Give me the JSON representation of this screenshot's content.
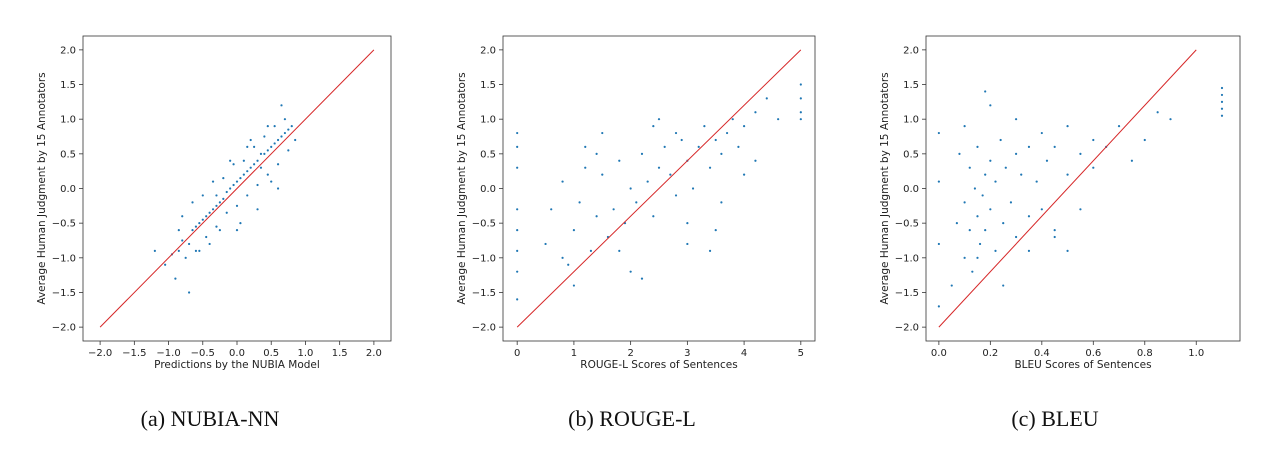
{
  "chart_data": [
    {
      "type": "scatter",
      "caption": "(a) NUBIA-NN",
      "xlabel": "Predictions by the NUBIA Model",
      "ylabel": "Average Human Judgment by 15 Annotators",
      "xlim": [
        -2.25,
        2.25
      ],
      "ylim": [
        -2.2,
        2.2
      ],
      "x_ticks": [
        -2.0,
        -1.5,
        -1.0,
        -0.5,
        0.0,
        0.5,
        1.0,
        1.5,
        2.0
      ],
      "x_tick_labels": [
        "−2.0",
        "−1.5",
        "−1.0",
        "−0.5",
        "0.0",
        "0.5",
        "1.0",
        "1.5",
        "2.0"
      ],
      "y_ticks": [
        -2.0,
        -1.5,
        -1.0,
        -0.5,
        0.0,
        0.5,
        1.0,
        1.5,
        2.0
      ],
      "y_tick_labels": [
        "−2.0",
        "−1.5",
        "−1.0",
        "−0.5",
        "0.0",
        "0.5",
        "1.0",
        "1.5",
        "2.0"
      ],
      "reference_line": {
        "x": [
          -2.0,
          2.0
        ],
        "y": [
          -2.0,
          2.0
        ],
        "color": "#d62728"
      },
      "point_color": "#1f77b4",
      "grid": false,
      "series": [
        {
          "x": [
            -1.05,
            -0.95,
            -0.85,
            -0.8,
            -0.7,
            -0.65,
            -0.6,
            -0.55,
            -0.5,
            -0.45,
            -0.4,
            -0.35,
            -0.3,
            -0.25,
            -0.2,
            -0.15,
            -0.1,
            -0.05,
            0.0,
            0.05,
            0.1,
            0.15,
            0.2,
            0.25,
            0.3,
            0.35,
            0.4,
            0.45,
            0.5,
            0.55,
            0.6,
            0.65,
            0.7,
            0.75,
            0.8,
            -0.9,
            -0.75,
            -0.6,
            -0.45,
            -0.3,
            -0.15,
            0.0,
            0.15,
            0.3,
            0.45,
            0.6,
            0.75,
            -0.5,
            -0.2,
            0.1,
            0.4,
            0.7,
            -0.8,
            -0.4,
            0.0,
            0.3,
            0.6,
            -0.65,
            -0.35,
            -0.05,
            0.25,
            0.55,
            -1.2,
            -0.25,
            0.35,
            0.85,
            -0.7,
            0.05,
            0.5,
            -0.55,
            -0.1,
            0.2,
            0.65,
            -0.85,
            -0.3,
            0.15,
            0.45
          ],
          "y": [
            -1.1,
            -0.95,
            -0.9,
            -0.75,
            -0.8,
            -0.6,
            -0.55,
            -0.5,
            -0.45,
            -0.4,
            -0.35,
            -0.3,
            -0.25,
            -0.2,
            -0.15,
            -0.05,
            0.0,
            0.05,
            0.1,
            0.15,
            0.2,
            0.25,
            0.3,
            0.35,
            0.4,
            0.5,
            0.5,
            0.55,
            0.6,
            0.65,
            0.7,
            0.75,
            0.8,
            0.85,
            0.9,
            -1.3,
            -1.0,
            -0.9,
            -0.7,
            -0.55,
            -0.35,
            -0.25,
            -0.1,
            0.05,
            0.2,
            0.35,
            0.55,
            -0.1,
            0.15,
            0.4,
            0.75,
            1.0,
            -0.4,
            -0.8,
            -0.6,
            -0.3,
            0.0,
            -0.2,
            0.1,
            0.35,
            0.6,
            0.9,
            -0.9,
            -0.6,
            0.3,
            0.7,
            -1.5,
            -0.5,
            0.1,
            -0.9,
            0.4,
            0.7,
            1.2,
            -0.6,
            -0.1,
            0.6,
            0.9
          ]
        }
      ]
    },
    {
      "type": "scatter",
      "caption": "(b) ROUGE-L",
      "xlabel": "ROUGE-L Scores of Sentences",
      "ylabel": "Average Human Judgment by 15 Annotators",
      "xlim": [
        -0.25,
        5.25
      ],
      "ylim": [
        -2.2,
        2.2
      ],
      "x_ticks": [
        0,
        1,
        2,
        3,
        4,
        5
      ],
      "x_tick_labels": [
        "0",
        "1",
        "2",
        "3",
        "4",
        "5"
      ],
      "y_ticks": [
        -2.0,
        -1.5,
        -1.0,
        -0.5,
        0.0,
        0.5,
        1.0,
        1.5,
        2.0
      ],
      "y_tick_labels": [
        "−2.0",
        "−1.5",
        "−1.0",
        "−0.5",
        "0.0",
        "0.5",
        "1.0",
        "1.5",
        "2.0"
      ],
      "reference_line": {
        "x": [
          0,
          5
        ],
        "y": [
          -2.0,
          2.0
        ],
        "color": "#d62728"
      },
      "point_color": "#1f77b4",
      "grid": false,
      "series": [
        {
          "x": [
            0,
            0,
            0,
            0,
            0,
            0,
            0,
            0,
            0.5,
            0.6,
            0.8,
            0.9,
            1.0,
            1.1,
            1.2,
            1.3,
            1.4,
            1.5,
            1.6,
            1.7,
            1.8,
            1.9,
            2.0,
            2.1,
            2.2,
            2.3,
            2.4,
            2.5,
            2.6,
            2.7,
            2.8,
            2.9,
            3.0,
            3.1,
            3.2,
            3.3,
            3.4,
            3.5,
            3.6,
            3.7,
            3.8,
            3.9,
            4.0,
            4.2,
            4.4,
            4.6,
            5,
            5,
            5,
            5,
            1.0,
            1.5,
            2.0,
            2.5,
            3.0,
            3.5,
            4.0,
            1.2,
            1.8,
            2.4,
            3.0,
            3.6,
            4.2,
            0.8,
            1.4,
            2.2,
            2.8,
            3.4
          ],
          "y": [
            -1.6,
            -1.2,
            -0.9,
            -0.6,
            -0.3,
            0.3,
            0.6,
            0.8,
            -0.8,
            -0.3,
            0.1,
            -1.1,
            -0.6,
            -0.2,
            0.3,
            -0.9,
            -0.4,
            0.2,
            -0.7,
            -0.3,
            0.4,
            -0.5,
            0.0,
            -0.2,
            0.5,
            0.1,
            -0.4,
            0.3,
            0.6,
            0.2,
            -0.1,
            0.7,
            0.4,
            0.0,
            0.6,
            0.9,
            0.3,
            0.7,
            0.5,
            0.8,
            1.0,
            0.6,
            0.9,
            1.1,
            1.3,
            1.0,
            1.5,
            1.3,
            1.1,
            1.0,
            -1.4,
            0.8,
            -1.2,
            1.0,
            -0.8,
            -0.6,
            0.2,
            0.6,
            -0.9,
            0.9,
            -0.5,
            -0.2,
            0.4,
            -1.0,
            0.5,
            -1.3,
            0.8,
            -0.9
          ]
        }
      ]
    },
    {
      "type": "scatter",
      "caption": "(c) BLEU",
      "xlabel": "BLEU Scores of Sentences",
      "ylabel": "Average Human Judgment by 15 Annotators",
      "xlim": [
        -0.05,
        1.17
      ],
      "ylim": [
        -2.2,
        2.2
      ],
      "x_ticks": [
        0.0,
        0.2,
        0.4,
        0.6,
        0.8,
        1.0
      ],
      "x_tick_labels": [
        "0.0",
        "0.2",
        "0.4",
        "0.6",
        "0.8",
        "1.0"
      ],
      "y_ticks": [
        -2.0,
        -1.5,
        -1.0,
        -0.5,
        0.0,
        0.5,
        1.0,
        1.5,
        2.0
      ],
      "y_tick_labels": [
        "−2.0",
        "−1.5",
        "−1.0",
        "−0.5",
        "0.0",
        "0.5",
        "1.0",
        "1.5",
        "2.0"
      ],
      "reference_line": {
        "x": [
          0.0,
          1.0
        ],
        "y": [
          -2.0,
          2.0
        ],
        "color": "#d62728"
      },
      "point_color": "#1f77b4",
      "grid": false,
      "series": [
        {
          "x": [
            0.0,
            0.0,
            0.0,
            0.0,
            0.05,
            0.07,
            0.08,
            0.1,
            0.1,
            0.12,
            0.12,
            0.13,
            0.14,
            0.15,
            0.15,
            0.16,
            0.17,
            0.18,
            0.18,
            0.2,
            0.2,
            0.22,
            0.22,
            0.24,
            0.25,
            0.26,
            0.28,
            0.3,
            0.3,
            0.32,
            0.35,
            0.35,
            0.38,
            0.4,
            0.4,
            0.42,
            0.45,
            0.45,
            0.5,
            0.5,
            0.55,
            0.55,
            0.6,
            0.6,
            0.65,
            0.7,
            0.75,
            0.8,
            0.85,
            0.9,
            1.1,
            1.1,
            1.1,
            1.1,
            1.1,
            0.15,
            0.25,
            0.35,
            0.45,
            0.2,
            0.3,
            0.1,
            0.18,
            0.5
          ],
          "y": [
            -1.7,
            -0.8,
            0.1,
            0.8,
            -1.4,
            -0.5,
            0.5,
            -1.0,
            -0.2,
            0.3,
            -0.6,
            -1.2,
            0.0,
            -0.4,
            0.6,
            -0.8,
            -0.1,
            0.2,
            -0.6,
            0.4,
            -0.3,
            -0.9,
            0.1,
            0.7,
            -0.5,
            0.3,
            -0.2,
            0.5,
            -0.7,
            0.2,
            0.6,
            -0.4,
            0.1,
            0.8,
            -0.3,
            0.4,
            0.6,
            -0.6,
            0.2,
            0.9,
            0.5,
            -0.3,
            0.7,
            0.3,
            0.6,
            0.9,
            0.4,
            0.7,
            1.1,
            1.0,
            1.45,
            1.35,
            1.25,
            1.15,
            1.05,
            -1.0,
            -1.4,
            -0.9,
            -0.7,
            1.2,
            1.0,
            0.9,
            1.4,
            -0.9
          ]
        }
      ]
    }
  ]
}
